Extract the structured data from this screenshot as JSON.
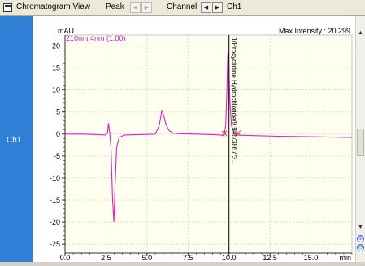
{
  "toolbar": {
    "view_title": "Chromatogram View",
    "peak_label": "Peak",
    "channel_label": "Channel",
    "channel_value": "Ch1"
  },
  "sidebar": {
    "channel_label": "Ch1"
  },
  "scrollbar": {
    "zoom_in_symbol": "⊕",
    "zoom_out_symbol": "⊖"
  },
  "chart_data": {
    "type": "line",
    "ylabel": "mAU",
    "xlabel": "min",
    "series_label": "210nm,4nm (1.00)",
    "max_intensity_label": "Max Intensity : 20,299",
    "xlim": [
      0,
      17.5
    ],
    "ylim": [
      -27,
      22.5
    ],
    "x_ticks": [
      "0.0",
      "2.5",
      "5.0",
      "7.5",
      "10.0",
      "12.5",
      "15.0"
    ],
    "y_ticks": [
      20,
      15,
      10,
      5,
      0,
      -5,
      -10,
      -15,
      -20,
      -25
    ],
    "grid": true,
    "colors": {
      "signal": "#e020c0",
      "label": "#c020c0",
      "marker": "#e04040",
      "plot_bg": "#fffff0",
      "grid": "#c8c8b4"
    },
    "cursor_x": 10.0,
    "peak_annotation": {
      "text": "1/Procyclidine Hydrochloride/9.946/3867/3...",
      "x": 9.95
    },
    "signal": {
      "x": [
        0.0,
        1.0,
        2.0,
        2.5,
        2.6,
        2.65,
        2.72,
        2.8,
        2.9,
        2.98,
        3.05,
        3.15,
        3.3,
        3.6,
        4.5,
        5.5,
        5.75,
        5.9,
        6.0,
        6.15,
        6.35,
        6.6,
        7.0,
        8.0,
        9.0,
        9.5,
        9.7,
        9.8,
        9.88,
        9.92,
        9.95,
        9.99,
        10.05,
        10.15,
        10.3,
        10.5,
        11.0,
        13.0,
        15.0,
        17.5
      ],
      "y": [
        0.0,
        0.0,
        -0.1,
        -0.2,
        0.5,
        2.5,
        0.4,
        -3.0,
        -15.0,
        -20.0,
        -12.0,
        -3.0,
        -0.8,
        -0.2,
        -0.1,
        0.0,
        2.0,
        5.3,
        4.5,
        2.2,
        0.8,
        0.2,
        0.1,
        0.0,
        -0.1,
        -0.2,
        -0.4,
        2.0,
        11.0,
        17.5,
        19.0,
        16.0,
        8.0,
        2.0,
        0.3,
        -0.2,
        -0.3,
        -0.5,
        -0.6,
        -0.8
      ]
    }
  }
}
